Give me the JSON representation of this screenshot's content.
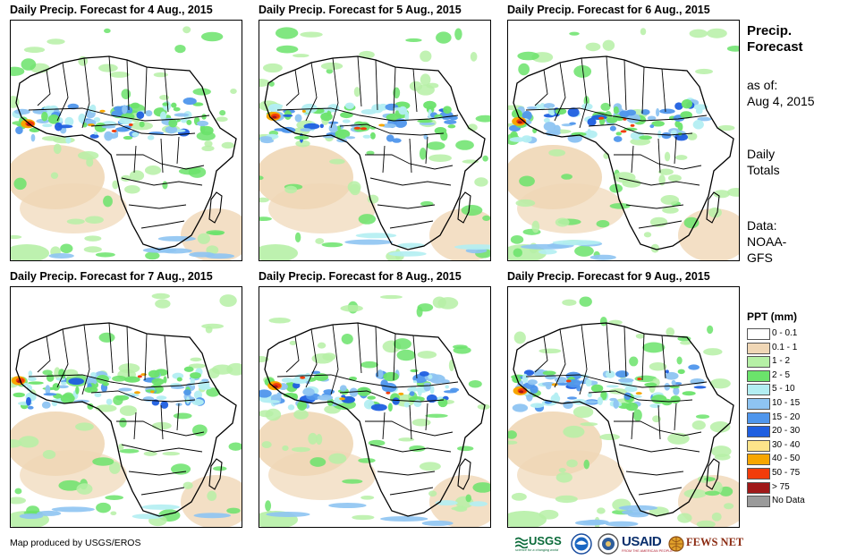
{
  "panels": [
    {
      "title": "Daily Precip. Forecast for 4 Aug., 2015"
    },
    {
      "title": "Daily Precip. Forecast for 5 Aug., 2015"
    },
    {
      "title": "Daily Precip. Forecast for 6 Aug., 2015"
    },
    {
      "title": "Daily Precip. Forecast for 7 Aug., 2015"
    },
    {
      "title": "Daily Precip. Forecast for 8 Aug., 2015"
    },
    {
      "title": "Daily Precip. Forecast for 9 Aug., 2015"
    }
  ],
  "sidebar": {
    "title_line1": "Precip.",
    "title_line2": "Forecast",
    "asof_label": "as of:",
    "asof_date": "Aug 4, 2015",
    "totals_line1": "Daily",
    "totals_line2": "Totals",
    "data_line1": "Data:",
    "data_line2": "NOAA-",
    "data_line3": "GFS"
  },
  "legend": {
    "title": "PPT (mm)",
    "items": [
      {
        "label": "0 - 0.1",
        "color": "#ffffff"
      },
      {
        "label": "0.1 - 1",
        "color": "#f0d7b6"
      },
      {
        "label": "1 - 2",
        "color": "#b6f0a6"
      },
      {
        "label": "2 - 5",
        "color": "#6be36b"
      },
      {
        "label": "5 - 10",
        "color": "#b3eef2"
      },
      {
        "label": "10 - 15",
        "color": "#8ec4f2"
      },
      {
        "label": "15 - 20",
        "color": "#4f96ec"
      },
      {
        "label": "20 - 30",
        "color": "#1f5fe0"
      },
      {
        "label": "30 - 40",
        "color": "#fde48a"
      },
      {
        "label": "40 - 50",
        "color": "#f7a600"
      },
      {
        "label": "50 - 75",
        "color": "#f23c0a"
      },
      {
        "label": "> 75",
        "color": "#a01818"
      },
      {
        "label": "No Data",
        "color": "#9a9a9a"
      }
    ]
  },
  "footer": {
    "credit": "Map produced by USGS/EROS",
    "logos": {
      "usgs": "USGS",
      "usgs_tagline": "science for a changing world",
      "usaid": "USAID",
      "usaid_tagline": "FROM THE AMERICAN PEOPLE",
      "fews": "FEWS NET"
    }
  }
}
